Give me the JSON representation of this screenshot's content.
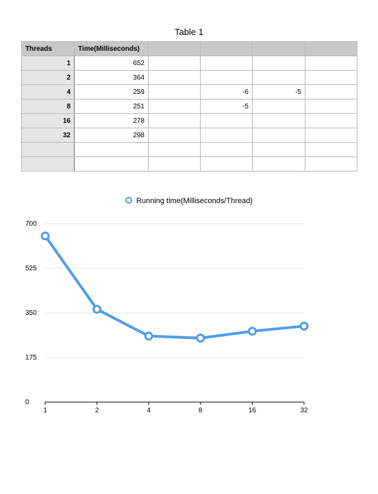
{
  "table": {
    "title": "Table 1",
    "headers": [
      "Threads",
      "Time(Milliseconds)",
      "",
      "",
      "",
      ""
    ],
    "rows": [
      [
        "1",
        "652",
        "",
        "",
        "",
        ""
      ],
      [
        "2",
        "364",
        "",
        "",
        "",
        ""
      ],
      [
        "4",
        "259",
        "",
        "-6",
        "-5",
        ""
      ],
      [
        "8",
        "251",
        "",
        "-5",
        "",
        ""
      ],
      [
        "16",
        "278",
        "",
        "",
        "",
        ""
      ],
      [
        "32",
        "298",
        "",
        "",
        "",
        ""
      ],
      [
        "",
        "",
        "",
        "",
        "",
        ""
      ],
      [
        "",
        "",
        "",
        "",
        "",
        ""
      ]
    ]
  },
  "chart_data": {
    "type": "line",
    "title": "",
    "xlabel": "",
    "ylabel": "",
    "categories": [
      "1",
      "2",
      "4",
      "8",
      "16",
      "32"
    ],
    "series": [
      {
        "name": "Running time(Milliseconds/Thread)",
        "values": [
          652,
          364,
          259,
          251,
          278,
          298
        ]
      }
    ],
    "ylim": [
      0,
      700
    ],
    "yticks": [
      0,
      175,
      350,
      525,
      700
    ],
    "grid": true,
    "legend_position": "top-center",
    "line_color": "#4f9ee8"
  }
}
